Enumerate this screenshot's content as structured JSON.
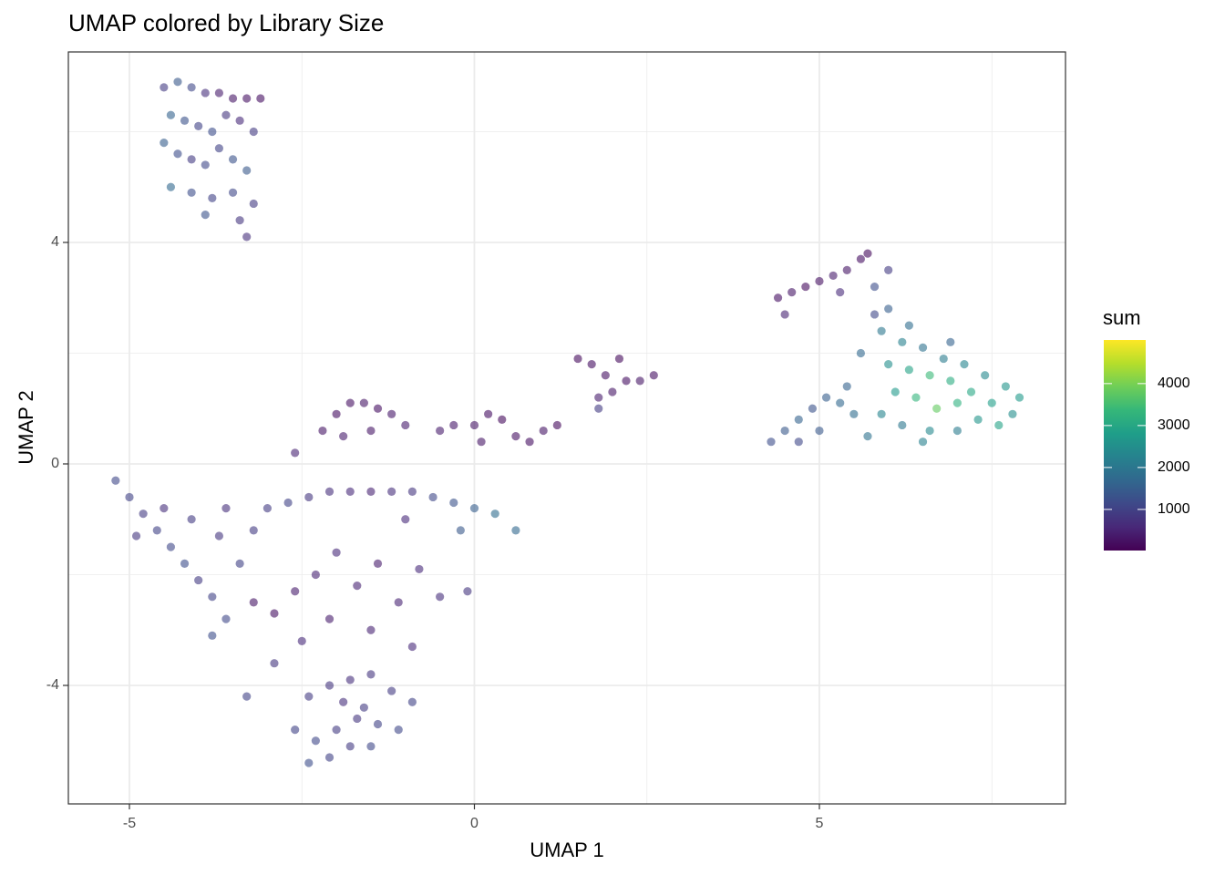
{
  "chart_data": {
    "type": "scatter",
    "title": "UMAP colored by Library Size",
    "x_label": "UMAP 1",
    "y_label": "UMAP 2",
    "xlim": [
      -5.885,
      8.567
    ],
    "ylim": [
      -6.14,
      7.44
    ],
    "xticks": [
      -5,
      0,
      5
    ],
    "yticks": [
      -4,
      0,
      4
    ],
    "x_minor_grid": [
      -2.5,
      2.5,
      7.5
    ],
    "y_minor_grid": [
      -2,
      2,
      6
    ],
    "grid": true,
    "point_opacity": 0.6,
    "color_scale": {
      "name": "sum",
      "lim": [
        20,
        5040
      ],
      "ticks": [
        1000,
        2000,
        3000,
        4000
      ],
      "colors": [
        "#440154",
        "#482878",
        "#3e4989",
        "#31688e",
        "#26828e",
        "#1f9e89",
        "#35b779",
        "#6ece58",
        "#b5de2b",
        "#fde725"
      ]
    },
    "x": [
      -4.5,
      -4.3,
      -4.1,
      -3.9,
      -3.7,
      -3.5,
      -3.3,
      -3.1,
      -4.4,
      -4.2,
      -4.0,
      -3.8,
      -3.6,
      -3.4,
      -3.2,
      -4.5,
      -4.3,
      -4.1,
      -3.9,
      -3.7,
      -3.5,
      -3.3,
      -4.4,
      -4.1,
      -3.8,
      -3.5,
      -3.2,
      -3.9,
      -3.4,
      -3.3,
      4.4,
      4.6,
      4.8,
      5.0,
      5.2,
      5.4,
      5.6,
      5.7,
      4.5,
      5.3,
      4.3,
      4.5,
      4.7,
      4.9,
      5.1,
      5.3,
      5.5,
      5.0,
      5.4,
      4.7,
      5.8,
      6.0,
      5.9,
      6.2,
      6.5,
      6.8,
      7.1,
      7.4,
      7.7,
      7.9,
      6.0,
      6.3,
      6.6,
      6.9,
      7.2,
      7.5,
      7.8,
      6.1,
      6.4,
      6.7,
      7.0,
      7.3,
      5.9,
      6.2,
      6.6,
      7.0,
      5.7,
      6.5,
      5.6,
      6.9,
      7.6,
      6.0,
      5.8,
      6.3,
      0.0,
      0.2,
      0.4,
      0.6,
      0.8,
      1.0,
      1.2,
      -0.5,
      -0.3,
      0.1,
      1.5,
      1.7,
      1.9,
      2.1,
      2.2,
      2.4,
      2.6,
      1.8,
      2.0,
      1.8,
      -2.2,
      -2.0,
      -1.8,
      -1.6,
      -1.4,
      -1.2,
      -1.9,
      -1.5,
      -2.6,
      -1.0,
      -3.0,
      -2.7,
      -2.4,
      -2.1,
      -1.8,
      -1.5,
      -1.2,
      -0.9,
      -0.6,
      -0.3,
      0.0,
      0.3,
      0.6,
      -0.2,
      -1.0,
      -5.2,
      -5.0,
      -4.8,
      -4.6,
      -4.4,
      -4.2,
      -4.0,
      -3.8,
      -3.6,
      -3.8,
      -4.9,
      -4.5,
      -4.1,
      -3.7,
      -3.4,
      -3.2,
      -3.6,
      -3.2,
      -2.9,
      -2.6,
      -2.3,
      -2.0,
      -1.7,
      -1.4,
      -1.1,
      -0.8,
      -0.5,
      -0.1,
      -2.1,
      -1.5,
      -0.9,
      -2.9,
      -2.5,
      -3.3,
      -2.4,
      -2.1,
      -1.8,
      -1.5,
      -1.2,
      -0.9,
      -2.6,
      -2.3,
      -2.0,
      -1.7,
      -1.4,
      -1.1,
      -2.4,
      -2.1,
      -1.8,
      -1.5,
      -1.9,
      -1.6
    ],
    "y": [
      6.8,
      6.9,
      6.8,
      6.7,
      6.7,
      6.6,
      6.6,
      6.6,
      6.3,
      6.2,
      6.1,
      6.0,
      6.3,
      6.2,
      6.0,
      5.8,
      5.6,
      5.5,
      5.4,
      5.7,
      5.5,
      5.3,
      5.0,
      4.9,
      4.8,
      4.9,
      4.7,
      4.5,
      4.4,
      4.1,
      3.0,
      3.1,
      3.2,
      3.3,
      3.4,
      3.5,
      3.7,
      3.8,
      2.7,
      3.1,
      0.4,
      0.6,
      0.8,
      1.0,
      1.2,
      1.1,
      0.9,
      0.6,
      1.4,
      0.4,
      3.2,
      2.8,
      2.4,
      2.2,
      2.1,
      1.9,
      1.8,
      1.6,
      1.4,
      1.2,
      1.8,
      1.7,
      1.6,
      1.5,
      1.3,
      1.1,
      0.9,
      1.3,
      1.2,
      1.0,
      1.1,
      0.8,
      0.9,
      0.7,
      0.6,
      0.6,
      0.5,
      0.4,
      2.0,
      2.2,
      0.7,
      3.5,
      2.7,
      2.5,
      0.7,
      0.9,
      0.8,
      0.5,
      0.4,
      0.6,
      0.7,
      0.6,
      0.7,
      0.4,
      1.9,
      1.8,
      1.6,
      1.9,
      1.5,
      1.5,
      1.6,
      1.2,
      1.3,
      1.0,
      0.6,
      0.9,
      1.1,
      1.1,
      1.0,
      0.9,
      0.5,
      0.6,
      0.2,
      0.7,
      -0.8,
      -0.7,
      -0.6,
      -0.5,
      -0.5,
      -0.5,
      -0.5,
      -0.5,
      -0.6,
      -0.7,
      -0.8,
      -0.9,
      -1.2,
      -1.2,
      -1.0,
      -0.3,
      -0.6,
      -0.9,
      -1.2,
      -1.5,
      -1.8,
      -2.1,
      -2.4,
      -2.8,
      -3.1,
      -1.3,
      -0.8,
      -1.0,
      -1.3,
      -1.8,
      -1.2,
      -0.8,
      -2.5,
      -2.7,
      -2.3,
      -2.0,
      -1.6,
      -2.2,
      -1.8,
      -2.5,
      -1.9,
      -2.4,
      -2.3,
      -2.8,
      -3.0,
      -3.3,
      -3.6,
      -3.2,
      -4.2,
      -4.2,
      -4.0,
      -3.9,
      -3.8,
      -4.1,
      -4.3,
      -4.8,
      -5.0,
      -4.8,
      -4.6,
      -4.7,
      -4.8,
      -5.4,
      -5.3,
      -5.1,
      -5.1,
      -4.3,
      -4.4
    ],
    "values": [
      900,
      1400,
      1100,
      700,
      400,
      300,
      250,
      200,
      1600,
      1300,
      1000,
      1200,
      800,
      600,
      900,
      1500,
      1200,
      900,
      1100,
      1000,
      1300,
      1400,
      1700,
      1200,
      1000,
      1100,
      900,
      1300,
      800,
      700,
      200,
      300,
      150,
      250,
      400,
      300,
      200,
      150,
      500,
      600,
      1200,
      1400,
      1600,
      1300,
      1500,
      1700,
      1800,
      1400,
      1600,
      1100,
      1200,
      1500,
      2000,
      2200,
      1900,
      2100,
      2300,
      2400,
      2600,
      2700,
      2500,
      2900,
      3400,
      3100,
      3000,
      2800,
      2500,
      2700,
      3300,
      3800,
      3200,
      2600,
      2300,
      2000,
      2400,
      2100,
      1900,
      2200,
      1700,
      1600,
      2900,
      900,
      1100,
      1800,
      300,
      200,
      150,
      250,
      200,
      300,
      150,
      400,
      350,
      300,
      150,
      200,
      250,
      150,
      200,
      300,
      250,
      400,
      300,
      900,
      300,
      200,
      250,
      300,
      200,
      350,
      400,
      300,
      500,
      400,
      900,
      1000,
      800,
      700,
      600,
      500,
      700,
      800,
      1100,
      1300,
      1500,
      1800,
      1700,
      1400,
      600,
      1100,
      1000,
      900,
      1000,
      1100,
      1200,
      900,
      1000,
      1100,
      1200,
      800,
      700,
      900,
      800,
      1000,
      900,
      700,
      300,
      250,
      400,
      500,
      600,
      500,
      400,
      500,
      600,
      700,
      800,
      400,
      500,
      600,
      800,
      600,
      1000,
      900,
      800,
      700,
      800,
      900,
      1000,
      1000,
      1100,
      900,
      800,
      1000,
      1100,
      1200,
      1000,
      900,
      1100,
      700,
      900
    ]
  }
}
